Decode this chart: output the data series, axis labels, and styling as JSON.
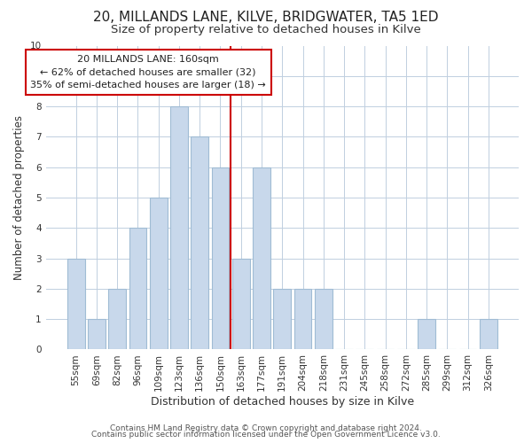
{
  "title": "20, MILLANDS LANE, KILVE, BRIDGWATER, TA5 1ED",
  "subtitle": "Size of property relative to detached houses in Kilve",
  "xlabel": "Distribution of detached houses by size in Kilve",
  "ylabel": "Number of detached properties",
  "bar_labels": [
    "55sqm",
    "69sqm",
    "82sqm",
    "96sqm",
    "109sqm",
    "123sqm",
    "136sqm",
    "150sqm",
    "163sqm",
    "177sqm",
    "191sqm",
    "204sqm",
    "218sqm",
    "231sqm",
    "245sqm",
    "258sqm",
    "272sqm",
    "285sqm",
    "299sqm",
    "312sqm",
    "326sqm"
  ],
  "bar_values": [
    3,
    1,
    2,
    4,
    5,
    8,
    7,
    6,
    3,
    6,
    2,
    2,
    2,
    0,
    0,
    0,
    0,
    1,
    0,
    0,
    1
  ],
  "bar_color": "#c8d8eb",
  "bar_edge_color": "#a0bcd4",
  "vline_index": 8,
  "vline_color": "#cc0000",
  "annotation_title": "20 MILLANDS LANE: 160sqm",
  "annotation_line1": "← 62% of detached houses are smaller (32)",
  "annotation_line2": "35% of semi-detached houses are larger (18) →",
  "annotation_box_color": "#ffffff",
  "annotation_box_edge": "#cc0000",
  "ylim": [
    0,
    10
  ],
  "yticks": [
    0,
    1,
    2,
    3,
    4,
    5,
    6,
    7,
    8,
    9,
    10
  ],
  "footer1": "Contains HM Land Registry data © Crown copyright and database right 2024.",
  "footer2": "Contains public sector information licensed under the Open Government Licence v3.0.",
  "bg_color": "#ffffff",
  "grid_color": "#c0cfe0",
  "title_fontsize": 11,
  "subtitle_fontsize": 9.5,
  "xlabel_fontsize": 9,
  "ylabel_fontsize": 8.5,
  "tick_fontsize": 7.5,
  "annotation_fontsize": 8,
  "footer_fontsize": 6.5
}
